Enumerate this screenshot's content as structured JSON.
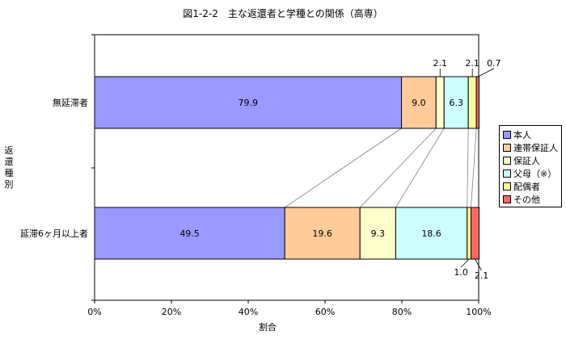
{
  "chart_data": {
    "type": "bar",
    "orientation": "horizontal",
    "stacked": "percent",
    "title": "図1-2-2　主な返還者と学種との関係（高専）",
    "ylabel": "返還種別",
    "xlabel": "割合",
    "xlim": [
      0,
      100
    ],
    "x_ticks": [
      "0%",
      "20%",
      "40%",
      "60%",
      "80%",
      "100%"
    ],
    "grid": false,
    "legend_position": "right",
    "categories": [
      "無延滞者",
      "延滞6ヶ月以上者"
    ],
    "series": [
      {
        "name": "本人",
        "color": "#9999ff",
        "values": [
          79.9,
          49.5
        ],
        "labels": [
          "79.9",
          "49.5"
        ]
      },
      {
        "name": "連帯保証人",
        "color": "#ffcc99",
        "values": [
          9.0,
          19.6
        ],
        "labels": [
          "9.0",
          "19.6"
        ]
      },
      {
        "name": "保証人",
        "color": "#ffffcc",
        "values": [
          2.1,
          9.3
        ],
        "labels": [
          "2.1",
          "9.3"
        ]
      },
      {
        "name": "父母（※）",
        "color": "#ccffff",
        "values": [
          6.3,
          18.6
        ],
        "labels": [
          "6.3",
          "18.6"
        ]
      },
      {
        "name": "配偶者",
        "color": "#ffff99",
        "values": [
          2.1,
          1.0
        ],
        "labels": [
          "2.1",
          "1.0"
        ]
      },
      {
        "name": "その他",
        "color": "#ff6666",
        "values": [
          0.7,
          2.1
        ],
        "labels": [
          "0.7",
          "2.1"
        ]
      }
    ]
  }
}
